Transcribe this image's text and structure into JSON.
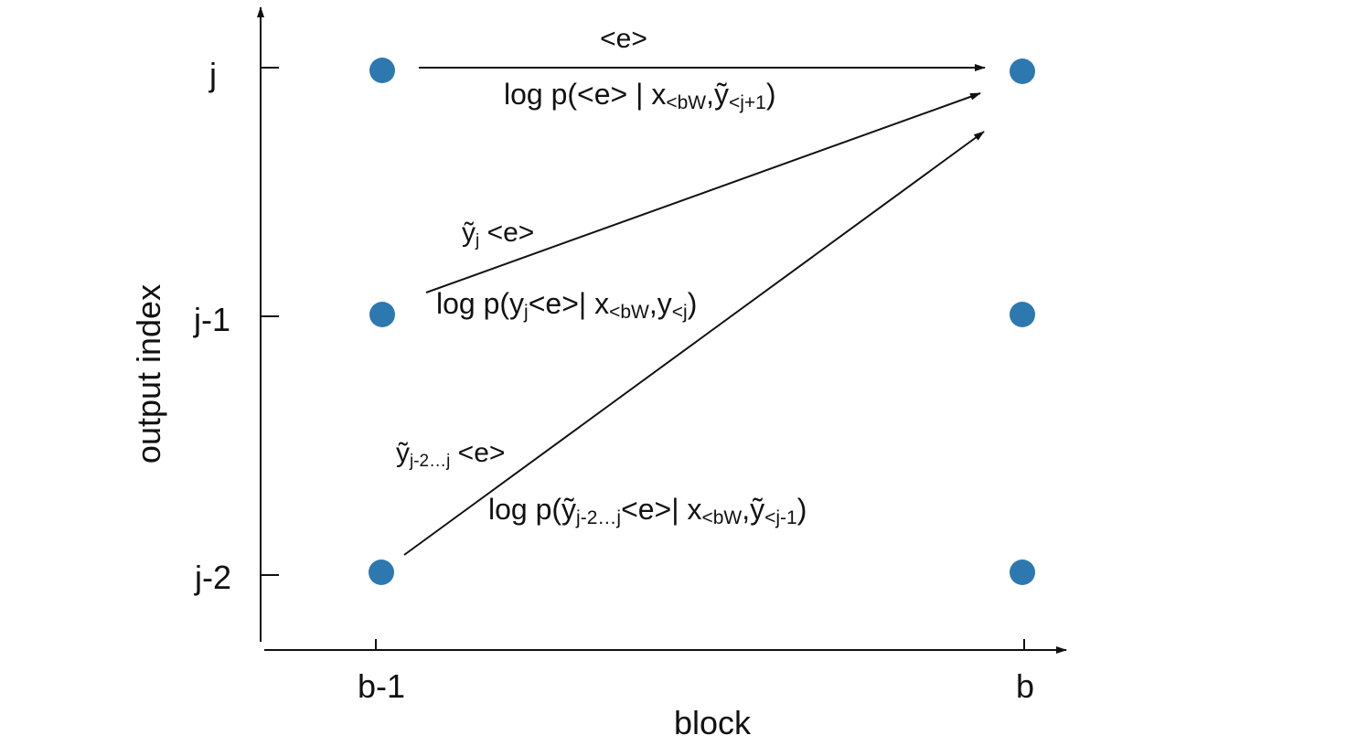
{
  "axes": {
    "y_label": "output index",
    "x_label": "block",
    "y_ticks": [
      "j",
      "j-1",
      "j-2"
    ],
    "x_ticks": [
      "b-1",
      "b"
    ]
  },
  "node_color": "#2e78b0",
  "arrow_color": "#111111",
  "transitions": [
    {
      "token": {
        "base": "<e>"
      },
      "logp": {
        "prefix": "log p(<e> | x",
        "sub1": "<bW",
        "mid": ",ỹ",
        "sub2": "<j+1",
        "suffix": ")"
      }
    },
    {
      "token": {
        "base": "ỹ",
        "sub": "j",
        "rest": " <e>"
      },
      "logp": {
        "prefix": "log p(y",
        "sub1": "j",
        "mid1": "<e>| x",
        "sub2": "<bW",
        "mid2": ",y",
        "sub3": "<j",
        "suffix": ")"
      }
    },
    {
      "token": {
        "base": "ỹ",
        "sub": "j-2…j",
        "rest": " <e>"
      },
      "logp": {
        "prefix": "log p(ỹ",
        "sub1": "j-2…j",
        "mid1": "<e>| x",
        "sub2": "<bW",
        "mid2": ",ỹ",
        "sub3": "<j-1",
        "suffix": ")"
      }
    }
  ]
}
